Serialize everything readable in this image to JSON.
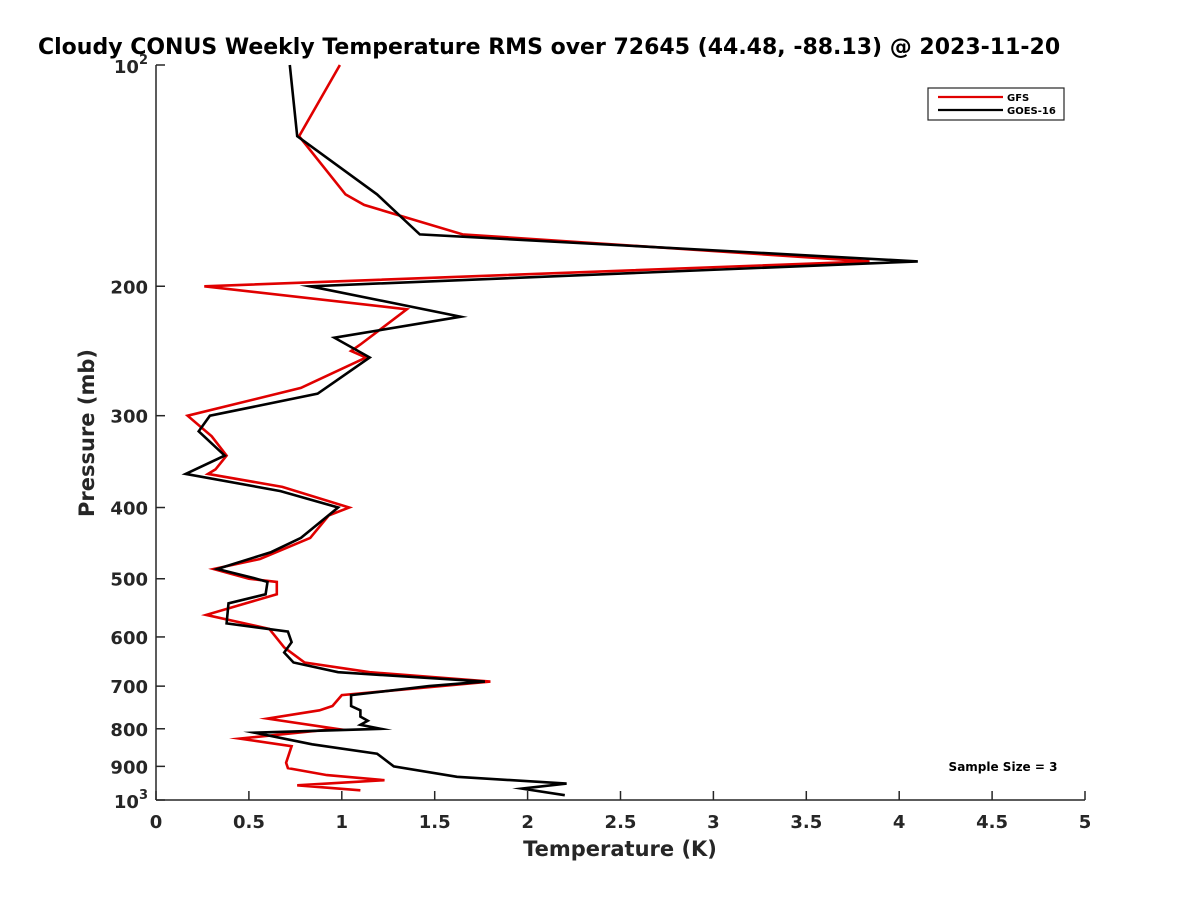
{
  "chart_data": {
    "type": "line",
    "title": "Cloudy CONUS Weekly Temperature RMS over 72645 (44.48, -88.13) @ 2023-11-20",
    "xlabel": "Temperature (K)",
    "ylabel": "Pressure (mb)",
    "xlim": [
      0,
      5
    ],
    "ylim": [
      100,
      1000
    ],
    "yscale": "log",
    "y_reversed": true,
    "grid": false,
    "legend_position": "top-right",
    "x_ticks": [
      {
        "value": 0,
        "label": "0"
      },
      {
        "value": 0.5,
        "label": "0.5"
      },
      {
        "value": 1,
        "label": "1"
      },
      {
        "value": 1.5,
        "label": "1.5"
      },
      {
        "value": 2,
        "label": "2"
      },
      {
        "value": 2.5,
        "label": "2.5"
      },
      {
        "value": 3,
        "label": "3"
      },
      {
        "value": 3.5,
        "label": "3.5"
      },
      {
        "value": 4,
        "label": "4"
      },
      {
        "value": 4.5,
        "label": "4.5"
      },
      {
        "value": 5,
        "label": "5"
      }
    ],
    "y_ticks": [
      {
        "value": 100,
        "base": "10",
        "exp": "2"
      },
      {
        "value": 200,
        "label": "200"
      },
      {
        "value": 300,
        "label": "300"
      },
      {
        "value": 400,
        "label": "400"
      },
      {
        "value": 500,
        "label": "500"
      },
      {
        "value": 600,
        "label": "600"
      },
      {
        "value": 700,
        "label": "700"
      },
      {
        "value": 800,
        "label": "800"
      },
      {
        "value": 900,
        "label": "900"
      },
      {
        "value": 1000,
        "base": "10",
        "exp": "3"
      }
    ],
    "annotation": "Sample Size = 3",
    "series": [
      {
        "name": "GFS",
        "color": "#e00000",
        "points": [
          [
            0.99,
            100
          ],
          [
            0.77,
            125
          ],
          [
            1.02,
            150
          ],
          [
            1.12,
            155
          ],
          [
            1.65,
            170
          ],
          [
            3.84,
            185
          ],
          [
            0.26,
            200
          ],
          [
            1.35,
            215
          ],
          [
            1.1,
            240
          ],
          [
            1.05,
            245
          ],
          [
            1.13,
            250
          ],
          [
            0.78,
            275
          ],
          [
            0.17,
            300
          ],
          [
            0.3,
            320
          ],
          [
            0.38,
            340
          ],
          [
            0.32,
            355
          ],
          [
            0.28,
            360
          ],
          [
            0.68,
            375
          ],
          [
            1.04,
            400
          ],
          [
            0.93,
            410
          ],
          [
            0.83,
            440
          ],
          [
            0.56,
            470
          ],
          [
            0.31,
            485
          ],
          [
            0.5,
            500
          ],
          [
            0.65,
            505
          ],
          [
            0.65,
            525
          ],
          [
            0.27,
            560
          ],
          [
            0.61,
            585
          ],
          [
            0.69,
            620
          ],
          [
            0.8,
            650
          ],
          [
            1.15,
            670
          ],
          [
            1.8,
            690
          ],
          [
            1.0,
            720
          ],
          [
            0.95,
            745
          ],
          [
            0.88,
            755
          ],
          [
            0.6,
            775
          ],
          [
            0.97,
            800
          ],
          [
            0.45,
            825
          ],
          [
            0.73,
            845
          ],
          [
            0.7,
            890
          ],
          [
            0.71,
            905
          ],
          [
            0.92,
            925
          ],
          [
            1.23,
            940
          ],
          [
            0.76,
            955
          ],
          [
            1.1,
            970
          ]
        ]
      },
      {
        "name": "GOES-16",
        "color": "#000000",
        "points": [
          [
            0.72,
            100
          ],
          [
            0.76,
            125
          ],
          [
            1.19,
            150
          ],
          [
            1.25,
            155
          ],
          [
            1.42,
            170
          ],
          [
            4.1,
            185
          ],
          [
            0.83,
            200
          ],
          [
            1.64,
            220
          ],
          [
            0.96,
            235
          ],
          [
            1.15,
            250
          ],
          [
            0.87,
            280
          ],
          [
            0.29,
            300
          ],
          [
            0.23,
            315
          ],
          [
            0.37,
            340
          ],
          [
            0.16,
            360
          ],
          [
            0.67,
            380
          ],
          [
            0.98,
            400
          ],
          [
            0.78,
            440
          ],
          [
            0.62,
            460
          ],
          [
            0.33,
            485
          ],
          [
            0.54,
            500
          ],
          [
            0.6,
            505
          ],
          [
            0.59,
            525
          ],
          [
            0.39,
            540
          ],
          [
            0.38,
            575
          ],
          [
            0.71,
            590
          ],
          [
            0.73,
            610
          ],
          [
            0.69,
            630
          ],
          [
            0.74,
            650
          ],
          [
            0.98,
            670
          ],
          [
            1.77,
            690
          ],
          [
            1.47,
            700
          ],
          [
            1.05,
            720
          ],
          [
            1.05,
            745
          ],
          [
            1.1,
            755
          ],
          [
            1.1,
            770
          ],
          [
            1.14,
            780
          ],
          [
            1.1,
            790
          ],
          [
            1.21,
            800
          ],
          [
            0.53,
            810
          ],
          [
            0.84,
            840
          ],
          [
            1.19,
            865
          ],
          [
            1.28,
            900
          ],
          [
            1.62,
            930
          ],
          [
            2.21,
            950
          ],
          [
            1.97,
            965
          ],
          [
            2.2,
            985
          ]
        ]
      }
    ]
  }
}
